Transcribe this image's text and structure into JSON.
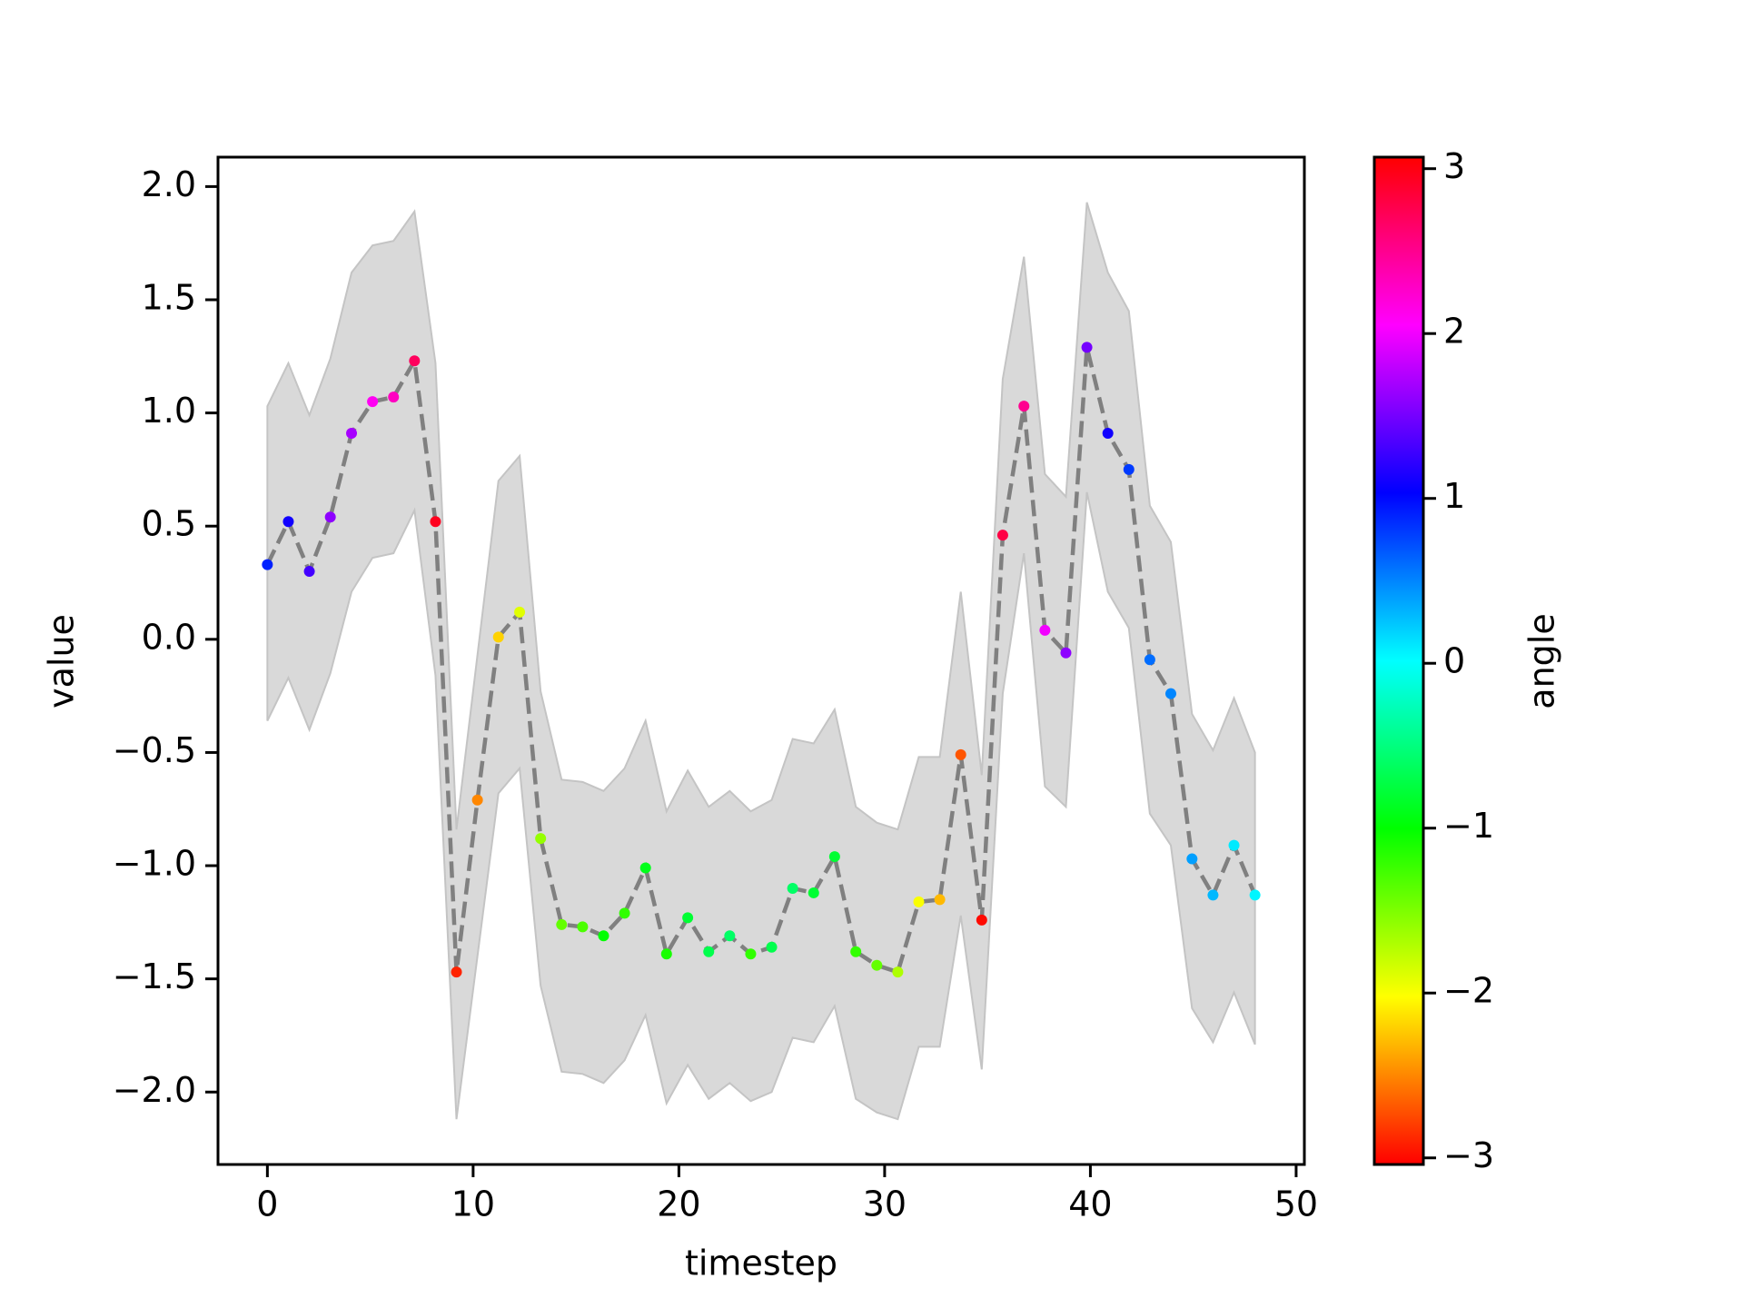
{
  "chart_data": {
    "type": "line",
    "x_label": "timestep",
    "y_label": "value",
    "x": [
      0,
      1.02,
      2.04,
      3.06,
      4.09,
      5.11,
      6.13,
      7.15,
      8.17,
      9.19,
      10.21,
      11.23,
      12.26,
      13.28,
      14.3,
      15.32,
      16.34,
      17.36,
      18.38,
      19.4,
      20.43,
      21.45,
      22.47,
      23.49,
      24.51,
      25.53,
      26.55,
      27.57,
      28.6,
      29.62,
      30.64,
      31.66,
      32.68,
      33.7,
      34.72,
      35.74,
      36.77,
      37.79,
      38.81,
      39.83,
      40.85,
      41.87,
      42.89,
      43.91,
      44.94,
      45.96,
      46.98,
      48
    ],
    "series": [
      {
        "color": "#808080",
        "values": [
          0.33,
          0.52,
          0.3,
          0.54,
          0.91,
          1.05,
          1.07,
          1.23,
          0.52,
          -1.47,
          -0.71,
          0.01,
          0.12,
          -0.88,
          -1.26,
          -1.27,
          -1.31,
          -1.21,
          -1.01,
          -1.39,
          -1.23,
          -1.38,
          -1.31,
          -1.39,
          -1.36,
          -1.1,
          -1.12,
          -0.96,
          -1.38,
          -1.44,
          -1.47,
          -1.16,
          -1.15,
          -0.51,
          -1.24,
          0.46,
          1.03,
          0.04,
          -0.06,
          1.29,
          0.91,
          0.75,
          -0.09,
          -0.24,
          -0.97,
          -1.13,
          -0.91,
          -1.13
        ],
        "upper": [
          1.03,
          1.22,
          0.99,
          1.24,
          1.62,
          1.74,
          1.76,
          1.89,
          1.22,
          -0.84,
          -0.07,
          0.7,
          0.81,
          -0.23,
          -0.62,
          -0.63,
          -0.67,
          -0.57,
          -0.36,
          -0.76,
          -0.58,
          -0.74,
          -0.67,
          -0.76,
          -0.71,
          -0.44,
          -0.46,
          -0.31,
          -0.74,
          -0.81,
          -0.84,
          -0.52,
          -0.52,
          0.21,
          -0.6,
          1.15,
          1.69,
          0.73,
          0.63,
          1.93,
          1.62,
          1.45,
          0.59,
          0.43,
          -0.33,
          -0.49,
          -0.26,
          -0.5
        ],
        "lower": [
          -0.36,
          -0.17,
          -0.4,
          -0.15,
          0.21,
          0.36,
          0.38,
          0.57,
          -0.16,
          -2.12,
          -1.4,
          -0.68,
          -0.57,
          -1.53,
          -1.91,
          -1.92,
          -1.96,
          -1.86,
          -1.66,
          -2.05,
          -1.88,
          -2.03,
          -1.96,
          -2.04,
          -2.0,
          -1.76,
          -1.78,
          -1.62,
          -2.03,
          -2.09,
          -2.12,
          -1.8,
          -1.8,
          -1.22,
          -1.9,
          -0.24,
          0.38,
          -0.65,
          -0.74,
          0.65,
          0.21,
          0.05,
          -0.77,
          -0.91,
          -1.63,
          -1.78,
          -1.56,
          -1.79
        ],
        "angle": [
          0.9,
          1.1,
          1.3,
          1.6,
          1.7,
          2.1,
          2.3,
          2.7,
          2.95,
          -2.9,
          -2.5,
          -2.2,
          -1.9,
          -1.6,
          -1.4,
          -1.3,
          -1.0,
          -1.2,
          -0.9,
          -1.1,
          -0.8,
          -0.7,
          -0.6,
          -1.2,
          -0.7,
          -0.6,
          -0.8,
          -0.8,
          -1.2,
          -1.4,
          -1.7,
          -2.0,
          -2.3,
          -2.7,
          -3.0,
          2.8,
          2.5,
          2.0,
          1.6,
          1.5,
          1.1,
          0.8,
          0.6,
          0.5,
          0.4,
          0.3,
          0.1,
          0.05
        ]
      }
    ],
    "band_color": "#d9d9d9",
    "colormap": "hsv",
    "clim": [
      -3.04,
      3.07
    ],
    "colorbar_label": "angle",
    "cticks": [
      {
        "value": -3,
        "label": "−3"
      },
      {
        "value": -2,
        "label": "−2"
      },
      {
        "value": -1,
        "label": "−1"
      },
      0,
      1,
      2,
      3
    ],
    "xlim": [
      -2.4,
      50.4
    ],
    "ylim": [
      -2.32,
      2.13
    ],
    "xticks": [
      0,
      10,
      20,
      30,
      40,
      50
    ],
    "yticks": [
      {
        "value": -2,
        "label": "−2.0"
      },
      {
        "value": -1.5,
        "label": "−1.5"
      },
      {
        "value": -1,
        "label": "−1.0"
      },
      {
        "value": -0.5,
        "label": "−0.5"
      },
      {
        "value": 0,
        "label": "0.0"
      },
      0.5,
      {
        "value": 1,
        "label": "1.0"
      },
      1.5,
      {
        "value": 2,
        "label": "2.0"
      }
    ]
  }
}
